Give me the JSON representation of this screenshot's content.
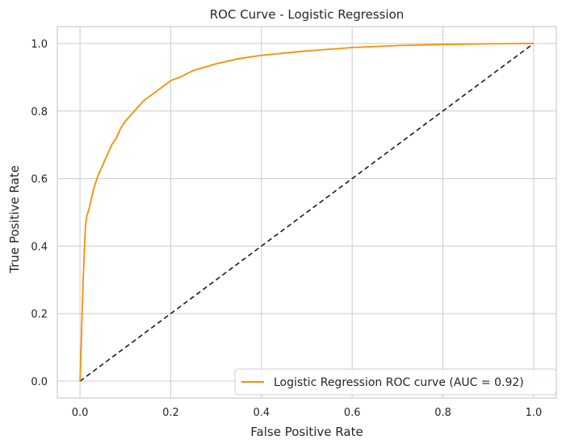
{
  "chart_data": {
    "type": "line",
    "title": "ROC Curve - Logistic Regression",
    "xlabel": "False Positive Rate",
    "ylabel": "True Positive Rate",
    "xlim": [
      -0.05,
      1.05
    ],
    "ylim": [
      -0.05,
      1.05
    ],
    "x_ticks": [
      "0.0",
      "0.2",
      "0.4",
      "0.6",
      "0.8",
      "1.0"
    ],
    "y_ticks": [
      "0.0",
      "0.2",
      "0.4",
      "0.6",
      "0.8",
      "1.0"
    ],
    "grid": true,
    "legend_position": "bottom-right",
    "series": [
      {
        "name": "Logistic Regression ROC curve (AUC = 0.92)",
        "color": "#ff8c00",
        "style": "solid",
        "x": [
          0.0,
          0.003,
          0.005,
          0.007,
          0.01,
          0.012,
          0.015,
          0.02,
          0.025,
          0.03,
          0.035,
          0.04,
          0.05,
          0.06,
          0.07,
          0.08,
          0.09,
          0.1,
          0.12,
          0.14,
          0.16,
          0.18,
          0.2,
          0.22,
          0.25,
          0.3,
          0.35,
          0.4,
          0.5,
          0.6,
          0.7,
          0.8,
          0.9,
          1.0
        ],
        "y": [
          0.0,
          0.12,
          0.22,
          0.3,
          0.4,
          0.46,
          0.49,
          0.51,
          0.54,
          0.57,
          0.59,
          0.61,
          0.64,
          0.67,
          0.7,
          0.72,
          0.75,
          0.77,
          0.8,
          0.83,
          0.85,
          0.87,
          0.89,
          0.9,
          0.92,
          0.94,
          0.955,
          0.965,
          0.978,
          0.988,
          0.994,
          0.997,
          0.999,
          1.0
        ]
      },
      {
        "name": "",
        "color": "#1a1a1a",
        "style": "dashed",
        "x": [
          0.0,
          1.0
        ],
        "y": [
          0.0,
          1.0
        ]
      }
    ]
  }
}
